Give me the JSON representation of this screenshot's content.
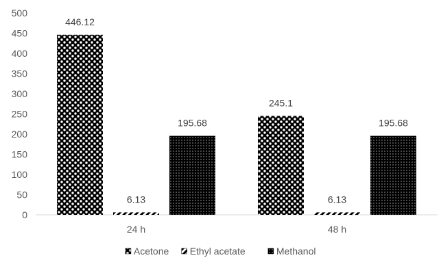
{
  "chart_data": {
    "type": "bar",
    "categories": [
      "24 h",
      "48 h"
    ],
    "series": [
      {
        "name": "Acetone",
        "values": [
          446.12,
          245.1
        ],
        "data_labels": [
          "446.12",
          "245.1"
        ],
        "pattern": "dots-on-dark"
      },
      {
        "name": "Ethyl acetate",
        "values": [
          6.13,
          6.13
        ],
        "data_labels": [
          "6.13",
          "6.13"
        ],
        "pattern": "diagonal-stripes"
      },
      {
        "name": "Methanol",
        "values": [
          195.68,
          195.68
        ],
        "data_labels": [
          "195.68",
          "195.68"
        ],
        "pattern": "fine-dots"
      }
    ],
    "ylim": [
      0,
      500
    ],
    "yticks": [
      "0",
      "50",
      "100",
      "150",
      "200",
      "250",
      "300",
      "350",
      "400",
      "450",
      "500"
    ],
    "grid": false,
    "legend": "bottom",
    "colors": {
      "bar_dark": "#000000",
      "bar_light": "#ffffff",
      "axis": "#d9d9d9",
      "text": "#595959"
    }
  }
}
